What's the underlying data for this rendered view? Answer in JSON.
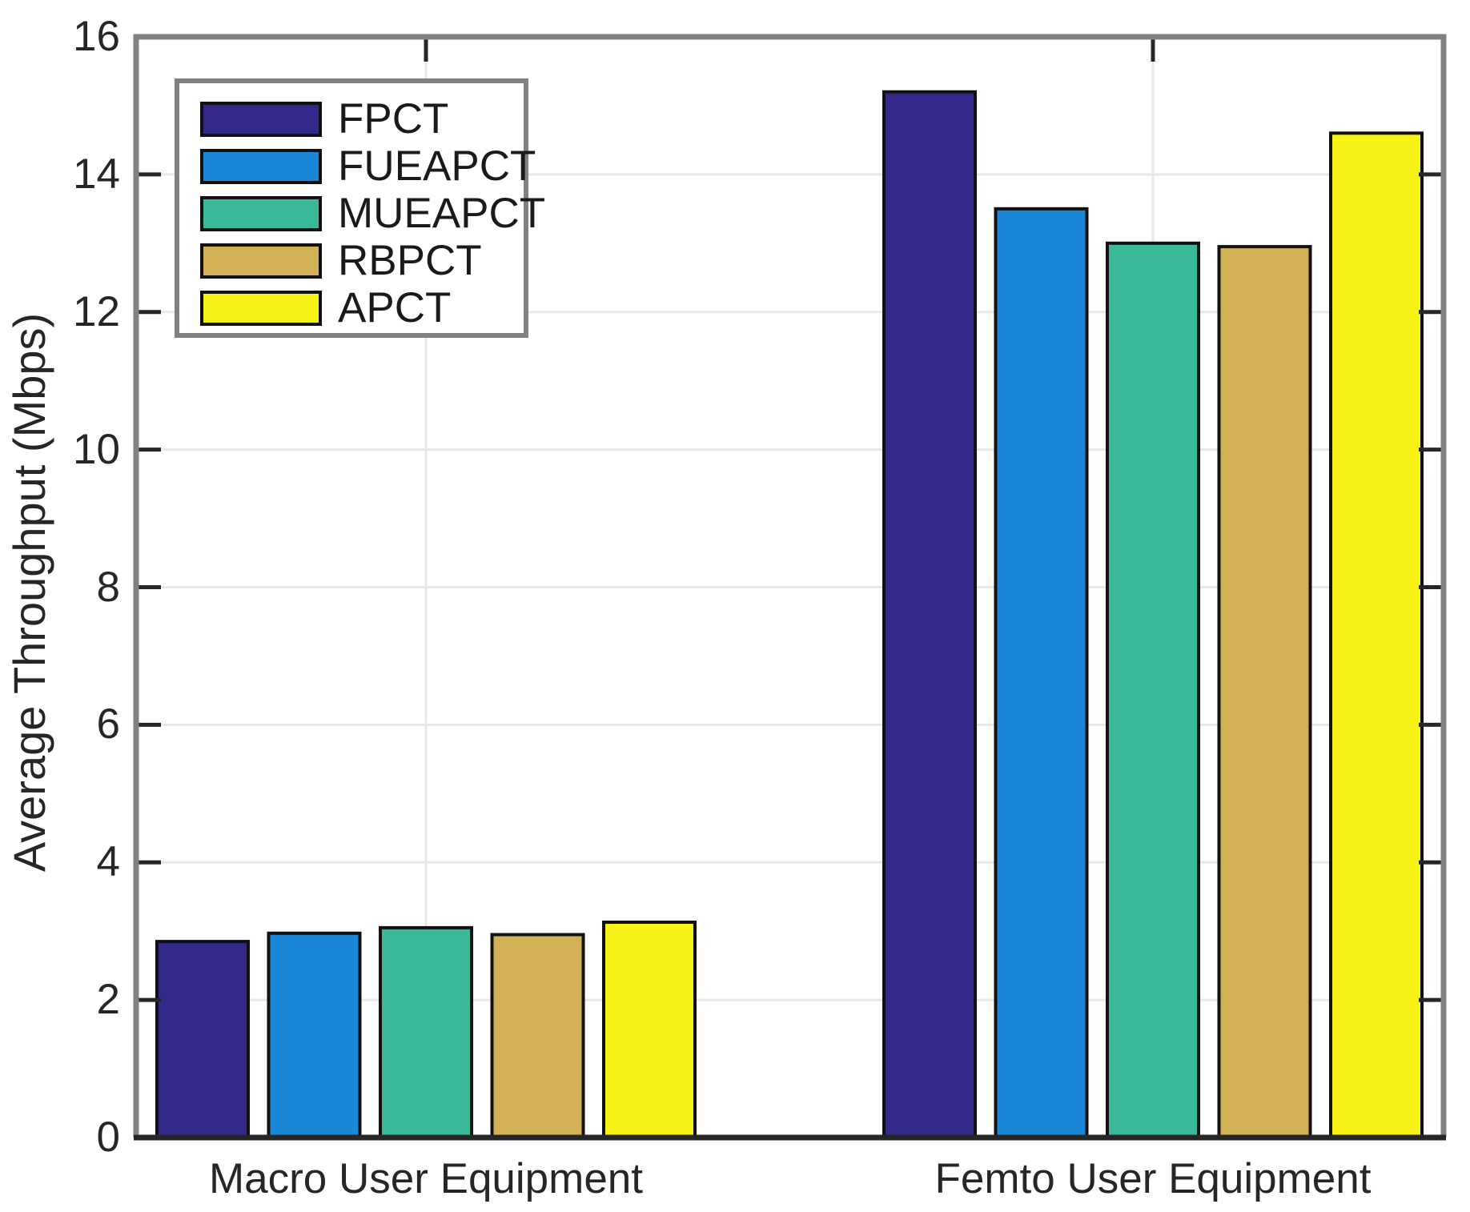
{
  "chart_data": {
    "type": "bar",
    "title": "",
    "xlabel": "",
    "ylabel": "Average Throughput (Mbps)",
    "categories": [
      "Macro User Equipment",
      "Femto User Equipment"
    ],
    "series": [
      {
        "name": "FPCT",
        "color": "#32298b",
        "values": [
          2.85,
          15.2
        ]
      },
      {
        "name": "FUEAPCT",
        "color": "#1b87d8",
        "values": [
          2.97,
          13.5
        ]
      },
      {
        "name": "MUEAPCT",
        "color": "#39b89a",
        "values": [
          3.05,
          13.0
        ]
      },
      {
        "name": "RBPCT",
        "color": "#d2b156",
        "values": [
          2.95,
          12.95
        ]
      },
      {
        "name": "APCT",
        "color": "#f7f215",
        "values": [
          3.13,
          14.6
        ]
      }
    ],
    "ylim": [
      0,
      16
    ],
    "yticks": [
      0,
      2,
      4,
      6,
      8,
      10,
      12,
      14,
      16
    ],
    "grid": true,
    "legend_position": "top-left",
    "colors": {
      "axis_box": "#818181",
      "baseline": "#262626",
      "gridline": "#e8e8e8",
      "tick": "#262626",
      "bar_edge": "#111111",
      "text": "#262626",
      "background": "#ffffff"
    }
  }
}
